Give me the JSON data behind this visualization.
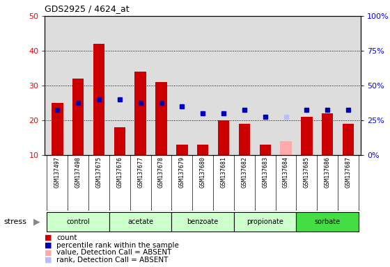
{
  "title": "GDS2925 / 4624_at",
  "samples": [
    "GSM137497",
    "GSM137498",
    "GSM137675",
    "GSM137676",
    "GSM137677",
    "GSM137678",
    "GSM137679",
    "GSM137680",
    "GSM137681",
    "GSM137682",
    "GSM137683",
    "GSM137684",
    "GSM137685",
    "GSM137686",
    "GSM137687"
  ],
  "count_values": [
    25,
    32,
    42,
    18,
    34,
    31,
    13,
    13,
    20,
    19,
    13,
    14,
    21,
    22,
    19
  ],
  "count_absent": [
    false,
    false,
    false,
    false,
    false,
    false,
    false,
    false,
    false,
    false,
    false,
    true,
    false,
    false,
    false
  ],
  "percentile_values": [
    23,
    25,
    26,
    26,
    25,
    25,
    24,
    22,
    22,
    23,
    21,
    21,
    23,
    23,
    23
  ],
  "percentile_absent": [
    false,
    false,
    false,
    false,
    false,
    false,
    false,
    false,
    false,
    false,
    false,
    true,
    false,
    false,
    false
  ],
  "ylim_left": [
    10,
    50
  ],
  "ylim_right": [
    0,
    100
  ],
  "yticks_left": [
    10,
    20,
    30,
    40,
    50
  ],
  "yticks_right": [
    0,
    25,
    50,
    75,
    100
  ],
  "bar_color": "#cc0000",
  "bar_absent_color": "#ffaaaa",
  "dot_color": "#0000bb",
  "dot_absent_color": "#bbbbff",
  "plot_bg_color": "#dddddd",
  "xtick_bg_color": "#cccccc",
  "groups": [
    {
      "name": "control",
      "start": 0,
      "end": 2,
      "color": "#ccffcc"
    },
    {
      "name": "acetate",
      "start": 3,
      "end": 5,
      "color": "#ccffcc"
    },
    {
      "name": "benzoate",
      "start": 6,
      "end": 8,
      "color": "#ccffcc"
    },
    {
      "name": "propionate",
      "start": 9,
      "end": 11,
      "color": "#ccffcc"
    },
    {
      "name": "sorbate",
      "start": 12,
      "end": 14,
      "color": "#44dd44"
    }
  ],
  "legend": [
    {
      "label": "count",
      "color": "#cc0000"
    },
    {
      "label": "percentile rank within the sample",
      "color": "#0000bb"
    },
    {
      "label": "value, Detection Call = ABSENT",
      "color": "#ffaaaa"
    },
    {
      "label": "rank, Detection Call = ABSENT",
      "color": "#bbbbff"
    }
  ]
}
